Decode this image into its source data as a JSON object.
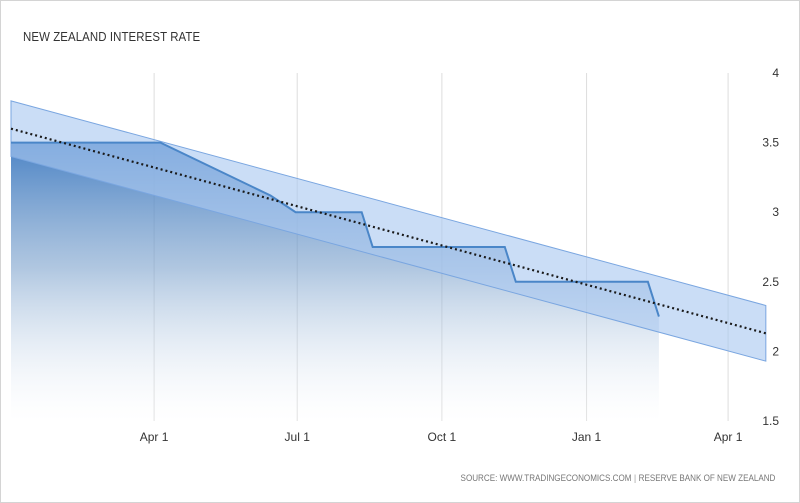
{
  "title": "NEW ZEALAND INTEREST RATE",
  "source": {
    "left": "SOURCE: WWW.TRADINGECONOMICS.COM",
    "separator": "|",
    "right": "RESERVE BANK OF NEW ZEALAND"
  },
  "colors": {
    "line": "#4a86c8",
    "area_top": "#3b78c0",
    "band_fill": "#a9c8f1",
    "band_edge": "#7aa6e0",
    "trend": "#1a1a1a",
    "grid": "#dddddd"
  },
  "chart_data": {
    "type": "line",
    "title": "NEW ZEALAND INTEREST RATE",
    "xlabel": "",
    "ylabel": "",
    "ylim": [
      1.5,
      4
    ],
    "grid": true,
    "y_axis_position": "right",
    "x_ticks": [
      {
        "label": "Apr 1",
        "day": 91
      },
      {
        "label": "Jul 1",
        "day": 182
      },
      {
        "label": "Oct 1",
        "day": 274
      },
      {
        "label": "Jan 1",
        "day": 366
      },
      {
        "label": "Apr 1",
        "day": 456
      }
    ],
    "y_ticks": [
      1.5,
      2,
      2.5,
      3,
      3.5,
      4
    ],
    "x_range_days": [
      0,
      496
    ],
    "series": [
      {
        "name": "Interest Rate",
        "points": [
          {
            "day": 0,
            "value": 3.5
          },
          {
            "day": 95,
            "value": 3.5
          },
          {
            "day": 165,
            "value": 3.12
          },
          {
            "day": 181,
            "value": 3.0
          },
          {
            "day": 223,
            "value": 3.0
          },
          {
            "day": 230,
            "value": 2.75
          },
          {
            "day": 314,
            "value": 2.75
          },
          {
            "day": 321,
            "value": 2.5
          },
          {
            "day": 405,
            "value": 2.5
          },
          {
            "day": 412,
            "value": 2.25
          }
        ]
      },
      {
        "name": "Trend",
        "points": [
          {
            "day": 0,
            "value": 3.6
          },
          {
            "day": 480,
            "value": 2.13
          }
        ]
      }
    ],
    "band": {
      "upper": [
        {
          "day": 0,
          "value": 3.8
        },
        {
          "day": 480,
          "value": 2.33
        }
      ],
      "lower": [
        {
          "day": 0,
          "value": 3.4
        },
        {
          "day": 480,
          "value": 1.93
        }
      ]
    }
  }
}
